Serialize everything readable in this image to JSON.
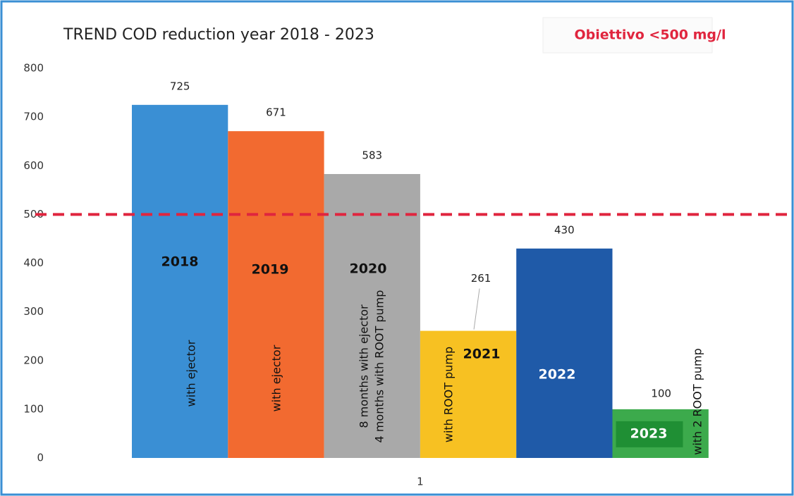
{
  "chart_data": {
    "type": "bar",
    "title": "TREND COD reduction year 2018 - 2023",
    "target_label": "Obiettivo <500 mg/l",
    "target": 500,
    "target_color": "#e0253e",
    "categories": [
      "1"
    ],
    "series": [
      {
        "name": "2018",
        "color": "#3a8fd4",
        "values": [
          725
        ],
        "annotation": [
          "with ejector"
        ]
      },
      {
        "name": "2019",
        "color": "#f26a30",
        "values": [
          671
        ],
        "annotation": [
          "with ejector"
        ]
      },
      {
        "name": "2020",
        "color": "#a9a9a9",
        "values": [
          583
        ],
        "annotation": [
          "8 months with ejector",
          "4 months with ROOT pump"
        ]
      },
      {
        "name": "2021",
        "color": "#f7c122",
        "values": [
          261
        ],
        "annotation": [
          "with ROOT pump"
        ]
      },
      {
        "name": "2022",
        "color": "#1f5aa8",
        "values": [
          430
        ],
        "annotation": []
      },
      {
        "name": "2023",
        "color": "#3caa4c",
        "values": [
          100
        ],
        "annotation": [
          "with 2 ROOT pump"
        ]
      }
    ],
    "ylim": [
      0,
      800
    ],
    "yticks": [
      0,
      100,
      200,
      300,
      400,
      500,
      600,
      700,
      800
    ]
  }
}
